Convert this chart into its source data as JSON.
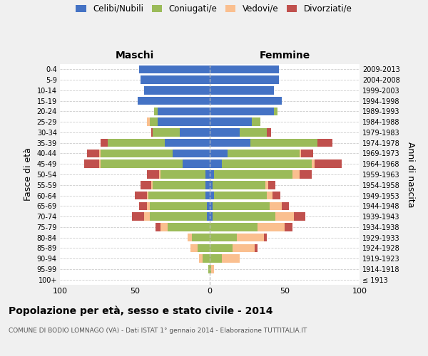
{
  "age_groups": [
    "100+",
    "95-99",
    "90-94",
    "85-89",
    "80-84",
    "75-79",
    "70-74",
    "65-69",
    "60-64",
    "55-59",
    "50-54",
    "45-49",
    "40-44",
    "35-39",
    "30-34",
    "25-29",
    "20-24",
    "15-19",
    "10-14",
    "5-9",
    "0-4"
  ],
  "birth_years": [
    "≤ 1913",
    "1914-1918",
    "1919-1923",
    "1924-1928",
    "1929-1933",
    "1934-1938",
    "1939-1943",
    "1944-1948",
    "1949-1953",
    "1954-1958",
    "1959-1963",
    "1964-1968",
    "1969-1973",
    "1974-1978",
    "1979-1983",
    "1984-1988",
    "1989-1993",
    "1994-1998",
    "1999-2003",
    "2004-2008",
    "2009-2013"
  ],
  "male": {
    "celibi": [
      0,
      0,
      0,
      0,
      0,
      0,
      2,
      2,
      3,
      3,
      3,
      18,
      25,
      30,
      20,
      35,
      35,
      48,
      44,
      46,
      47
    ],
    "coniugati": [
      0,
      1,
      5,
      8,
      12,
      28,
      38,
      38,
      38,
      35,
      30,
      55,
      48,
      38,
      18,
      5,
      2,
      0,
      0,
      0,
      0
    ],
    "vedovi": [
      0,
      0,
      2,
      5,
      3,
      5,
      4,
      2,
      1,
      1,
      1,
      1,
      1,
      0,
      0,
      2,
      0,
      0,
      0,
      0,
      0
    ],
    "divorziati": [
      0,
      0,
      0,
      0,
      0,
      3,
      8,
      5,
      8,
      7,
      8,
      10,
      8,
      5,
      1,
      0,
      0,
      0,
      0,
      0,
      0
    ]
  },
  "female": {
    "nubili": [
      0,
      0,
      0,
      0,
      0,
      0,
      2,
      2,
      3,
      2,
      3,
      8,
      12,
      27,
      20,
      28,
      43,
      48,
      43,
      46,
      46
    ],
    "coniugate": [
      0,
      1,
      8,
      15,
      18,
      32,
      42,
      38,
      35,
      35,
      52,
      60,
      48,
      45,
      18,
      6,
      2,
      0,
      0,
      0,
      0
    ],
    "vedove": [
      0,
      2,
      12,
      15,
      18,
      18,
      12,
      8,
      4,
      2,
      5,
      2,
      1,
      0,
      0,
      0,
      0,
      0,
      0,
      0,
      0
    ],
    "divorziate": [
      0,
      0,
      0,
      2,
      2,
      5,
      8,
      5,
      5,
      5,
      8,
      18,
      8,
      10,
      3,
      0,
      0,
      0,
      0,
      0,
      0
    ]
  },
  "colors": {
    "celibi": "#4472C4",
    "coniugati": "#9BBB59",
    "vedovi": "#FABF8F",
    "divorziati": "#C0504D"
  },
  "xlim": 100,
  "title": "Popolazione per età, sesso e stato civile - 2014",
  "subtitle": "COMUNE DI BODIO LOMNAGO (VA) - Dati ISTAT 1° gennaio 2014 - Elaborazione TUTTITALIA.IT",
  "ylabel_left": "Fasce di età",
  "ylabel_right": "Anni di nascita",
  "xlabel_left": "Maschi",
  "xlabel_right": "Femmine",
  "bg_color": "#f0f0f0",
  "bar_bg": "#ffffff",
  "legend_labels": [
    "Celibi/Nubili",
    "Coniugati/e",
    "Vedovi/e",
    "Divorziati/e"
  ]
}
